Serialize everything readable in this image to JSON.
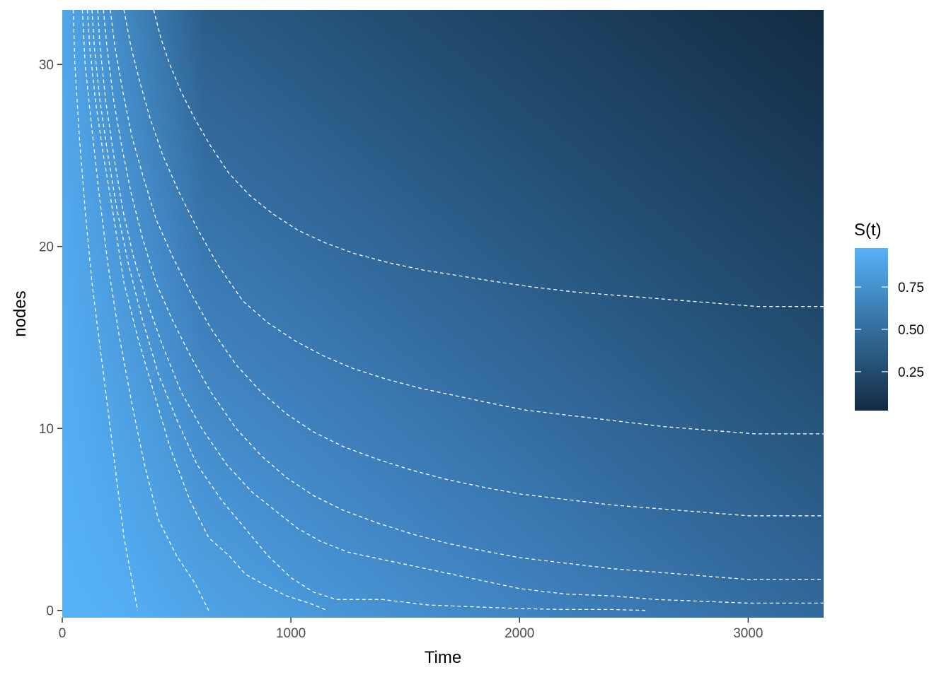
{
  "chart_data": {
    "type": "heatmap",
    "title": "",
    "xlabel": "Time",
    "ylabel": "nodes",
    "xlim": [
      0,
      3330
    ],
    "ylim": [
      -0.4,
      33
    ],
    "x_ticks": [
      0,
      1000,
      2000,
      3000
    ],
    "y_ticks": [
      0,
      10,
      20,
      30
    ],
    "x_tick_labels": [
      "0",
      "1000",
      "2000",
      "3000"
    ],
    "y_tick_labels": [
      "0",
      "10",
      "20",
      "30"
    ],
    "fill_description": "S(t) surface",
    "colors": {
      "high": "#56B1F7",
      "low": "#132B43"
    },
    "legend": {
      "title": "S(t)",
      "placement": "right",
      "range": [
        0.02,
        0.98
      ],
      "breaks": [
        0.75,
        0.5,
        0.25
      ],
      "labels": [
        "0.75",
        "0.50",
        "0.25"
      ]
    },
    "contours": [
      {
        "points": [
          [
            48,
            33
          ],
          [
            55,
            30
          ],
          [
            75,
            26
          ],
          [
            100,
            22
          ],
          [
            130,
            18
          ],
          [
            170,
            14
          ],
          [
            210,
            10
          ],
          [
            240,
            7
          ],
          [
            270,
            4
          ],
          [
            300,
            2
          ],
          [
            330,
            0
          ]
        ]
      },
      {
        "points": [
          [
            88,
            33
          ],
          [
            100,
            30
          ],
          [
            125,
            27
          ],
          [
            160,
            23
          ],
          [
            200,
            19
          ],
          [
            250,
            15
          ],
          [
            310,
            11
          ],
          [
            360,
            8
          ],
          [
            420,
            5
          ],
          [
            500,
            3
          ],
          [
            580,
            1.5
          ],
          [
            640,
            0
          ]
        ]
      },
      {
        "points": [
          [
            110,
            33
          ],
          [
            120,
            31
          ],
          [
            145,
            28
          ],
          [
            180,
            25
          ],
          [
            220,
            22
          ],
          [
            270,
            18
          ],
          [
            330,
            15
          ],
          [
            400,
            12
          ],
          [
            470,
            9
          ],
          [
            560,
            6
          ],
          [
            640,
            4
          ],
          [
            730,
            3
          ],
          [
            800,
            2
          ],
          [
            870,
            1.5
          ],
          [
            980,
            0.8
          ],
          [
            1080,
            0.4
          ],
          [
            1160,
            0
          ]
        ]
      },
      {
        "points": [
          [
            130,
            33
          ],
          [
            140,
            31
          ],
          [
            165,
            28
          ],
          [
            200,
            25
          ],
          [
            240,
            22
          ],
          [
            290,
            19
          ],
          [
            350,
            16
          ],
          [
            420,
            13
          ],
          [
            500,
            10.5
          ],
          [
            590,
            8
          ],
          [
            700,
            6
          ],
          [
            800,
            4.5
          ],
          [
            900,
            3
          ],
          [
            1000,
            1.8
          ],
          [
            1100,
            1
          ],
          [
            1200,
            0.6
          ],
          [
            1400,
            0.6
          ],
          [
            1600,
            0.3
          ],
          [
            1800,
            0.2
          ],
          [
            2000,
            0.1
          ],
          [
            2200,
            0.05
          ],
          [
            2400,
            0.05
          ],
          [
            2550,
            0
          ]
        ]
      },
      {
        "points": [
          [
            155,
            33
          ],
          [
            165,
            31
          ],
          [
            190,
            28
          ],
          [
            225,
            25
          ],
          [
            265,
            22
          ],
          [
            310,
            19.5
          ],
          [
            370,
            17
          ],
          [
            440,
            14.5
          ],
          [
            520,
            12
          ],
          [
            610,
            10
          ],
          [
            720,
            8
          ],
          [
            830,
            6.5
          ],
          [
            930,
            5.5
          ],
          [
            1030,
            4.5
          ],
          [
            1130,
            3.8
          ],
          [
            1250,
            3.2
          ],
          [
            1400,
            2.8
          ],
          [
            1550,
            2.4
          ],
          [
            1700,
            2.0
          ],
          [
            1850,
            1.6
          ],
          [
            2000,
            1.2
          ],
          [
            2200,
            0.9
          ],
          [
            2400,
            0.8
          ],
          [
            2600,
            0.6
          ],
          [
            2800,
            0.5
          ],
          [
            3000,
            0.4
          ],
          [
            3330,
            0.4
          ]
        ]
      },
      {
        "points": [
          [
            180,
            33
          ],
          [
            195,
            31
          ],
          [
            225,
            28
          ],
          [
            260,
            25.5
          ],
          [
            300,
            23
          ],
          [
            350,
            20.5
          ],
          [
            410,
            18
          ],
          [
            480,
            16
          ],
          [
            560,
            14
          ],
          [
            650,
            12
          ],
          [
            760,
            10
          ],
          [
            870,
            8.5
          ],
          [
            980,
            7.3
          ],
          [
            1100,
            6.3
          ],
          [
            1230,
            5.5
          ],
          [
            1380,
            4.8
          ],
          [
            1530,
            4.2
          ],
          [
            1680,
            3.7
          ],
          [
            1830,
            3.3
          ],
          [
            2000,
            2.9
          ],
          [
            2200,
            2.6
          ],
          [
            2400,
            2.3
          ],
          [
            2600,
            2.1
          ],
          [
            2800,
            1.9
          ],
          [
            3000,
            1.7
          ],
          [
            3330,
            1.7
          ]
        ]
      },
      {
        "points": [
          [
            210,
            33
          ],
          [
            230,
            31
          ],
          [
            265,
            28.5
          ],
          [
            305,
            26
          ],
          [
            350,
            24
          ],
          [
            410,
            21.5
          ],
          [
            480,
            19.5
          ],
          [
            560,
            17.5
          ],
          [
            650,
            15.5
          ],
          [
            760,
            13.5
          ],
          [
            870,
            12
          ],
          [
            980,
            10.8
          ],
          [
            1100,
            9.8
          ],
          [
            1230,
            9
          ],
          [
            1380,
            8.3
          ],
          [
            1530,
            7.7
          ],
          [
            1680,
            7.2
          ],
          [
            1830,
            6.8
          ],
          [
            2000,
            6.4
          ],
          [
            2200,
            6.1
          ],
          [
            2400,
            5.8
          ],
          [
            2600,
            5.6
          ],
          [
            2800,
            5.4
          ],
          [
            3000,
            5.2
          ],
          [
            3330,
            5.2
          ]
        ]
      },
      {
        "points": [
          [
            270,
            33
          ],
          [
            300,
            31
          ],
          [
            340,
            29
          ],
          [
            385,
            27
          ],
          [
            440,
            25
          ],
          [
            510,
            23
          ],
          [
            590,
            21
          ],
          [
            680,
            19
          ],
          [
            790,
            17
          ],
          [
            900,
            15.8
          ],
          [
            1020,
            14.8
          ],
          [
            1140,
            14
          ],
          [
            1270,
            13.3
          ],
          [
            1420,
            12.7
          ],
          [
            1570,
            12.2
          ],
          [
            1720,
            11.8
          ],
          [
            1870,
            11.4
          ],
          [
            2030,
            11
          ],
          [
            2230,
            10.7
          ],
          [
            2430,
            10.4
          ],
          [
            2630,
            10.1
          ],
          [
            2830,
            9.9
          ],
          [
            3030,
            9.7
          ],
          [
            3330,
            9.7
          ]
        ]
      },
      {
        "points": [
          [
            400,
            33
          ],
          [
            430,
            31.5
          ],
          [
            470,
            30
          ],
          [
            520,
            28.5
          ],
          [
            580,
            27
          ],
          [
            650,
            25.5
          ],
          [
            730,
            24
          ],
          [
            820,
            22.8
          ],
          [
            920,
            21.8
          ],
          [
            1030,
            20.9
          ],
          [
            1150,
            20.2
          ],
          [
            1280,
            19.6
          ],
          [
            1430,
            19.1
          ],
          [
            1580,
            18.7
          ],
          [
            1730,
            18.4
          ],
          [
            1880,
            18.1
          ],
          [
            2040,
            17.8
          ],
          [
            2240,
            17.5
          ],
          [
            2440,
            17.3
          ],
          [
            2640,
            17.1
          ],
          [
            2840,
            16.9
          ],
          [
            3040,
            16.7
          ],
          [
            3330,
            16.7
          ]
        ]
      }
    ]
  }
}
